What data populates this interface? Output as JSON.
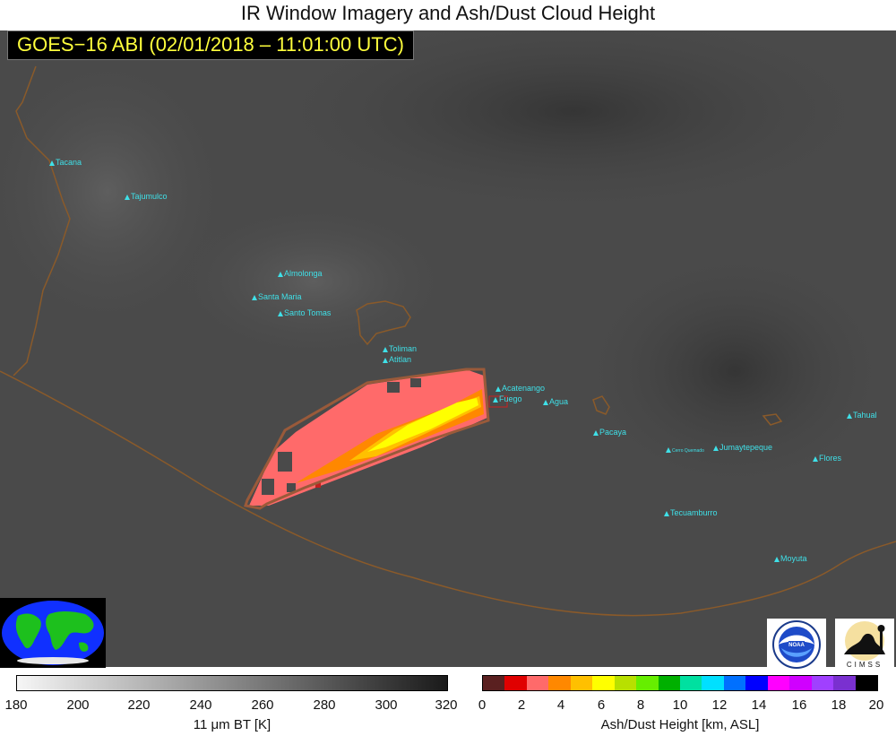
{
  "header": {
    "title": "IR Window Imagery and Ash/Dust Cloud Height",
    "subtitle": "GOES−16 ABI (02/01/2018 – 11:01:00 UTC)"
  },
  "volcanoes": [
    {
      "name": "Tacana"
    },
    {
      "name": "Tajumulco"
    },
    {
      "name": "Almolonga"
    },
    {
      "name": "Santa Maria"
    },
    {
      "name": "Santo Tomas"
    },
    {
      "name": "Toliman"
    },
    {
      "name": "Atitlan"
    },
    {
      "name": "Acatenango"
    },
    {
      "name": "Fuego"
    },
    {
      "name": "Agua"
    },
    {
      "name": "Pacaya"
    },
    {
      "name": "Jumaytepeque"
    },
    {
      "name": "Tahual"
    },
    {
      "name": "Flores"
    },
    {
      "name": "Tecuamburro"
    },
    {
      "name": "Moyuta"
    },
    {
      "name": "Cerro Quemado"
    }
  ],
  "bt_colorbar": {
    "label": "11 μm BT [K]",
    "ticks": [
      "180",
      "200",
      "220",
      "240",
      "260",
      "280",
      "300",
      "320"
    ]
  },
  "ash_colorbar": {
    "label": "Ash/Dust Height [km, ASL]",
    "ticks": [
      "0",
      "2",
      "4",
      "6",
      "8",
      "10",
      "12",
      "14",
      "16",
      "18",
      "20"
    ],
    "colors": [
      "#5a2020",
      "#e00000",
      "#ff6a6a",
      "#ff8800",
      "#ffc000",
      "#ffff00",
      "#b8e000",
      "#66ee00",
      "#00b000",
      "#00e0a0",
      "#00e0ff",
      "#0070ff",
      "#0000ff",
      "#ff00ff",
      "#d000ff",
      "#a040ff",
      "#7a30d0",
      "#000000"
    ]
  },
  "logos": {
    "cimss": "CIMSS"
  },
  "icons": {
    "globe": "globe-icon",
    "noaa": "noaa-logo",
    "cimss": "cimss-logo"
  }
}
